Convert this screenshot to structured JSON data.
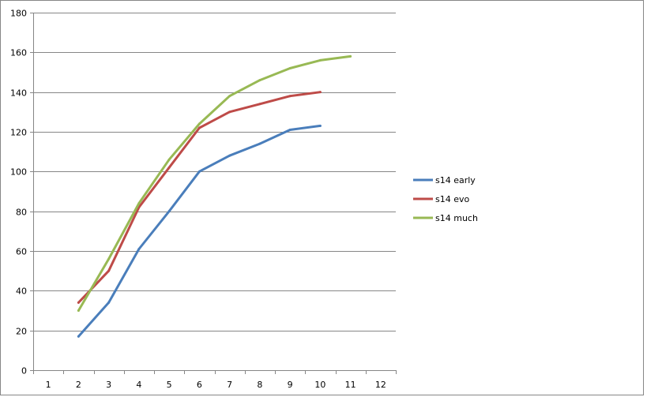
{
  "chart_data": {
    "type": "line",
    "title": "",
    "xlabel": "",
    "ylabel": "",
    "x_ticks": [
      1,
      2,
      3,
      4,
      5,
      6,
      7,
      8,
      9,
      10,
      11,
      12
    ],
    "y_ticks": [
      0,
      20,
      40,
      60,
      80,
      100,
      120,
      140,
      160,
      180
    ],
    "xlim": [
      0.5,
      12.5
    ],
    "ylim": [
      0,
      180
    ],
    "grid": "horizontal",
    "legend_position": "right",
    "series": [
      {
        "name": "s14 early",
        "color": "#4a7ebb",
        "x": [
          2,
          3,
          4,
          5,
          6,
          7,
          8,
          9,
          10
        ],
        "y": [
          17,
          34,
          61,
          80,
          100,
          108,
          114,
          121,
          123
        ]
      },
      {
        "name": "s14 evo",
        "color": "#be4b48",
        "x": [
          2,
          3,
          4,
          5,
          6,
          7,
          8,
          9,
          10
        ],
        "y": [
          34,
          50,
          82,
          102,
          122,
          130,
          134,
          138,
          140
        ]
      },
      {
        "name": "s14 much",
        "color": "#98b954",
        "x": [
          2,
          3,
          4,
          5,
          6,
          7,
          8,
          9,
          10,
          11
        ],
        "y": [
          30,
          56,
          84,
          106,
          124,
          138,
          146,
          152,
          156,
          158
        ]
      }
    ]
  }
}
